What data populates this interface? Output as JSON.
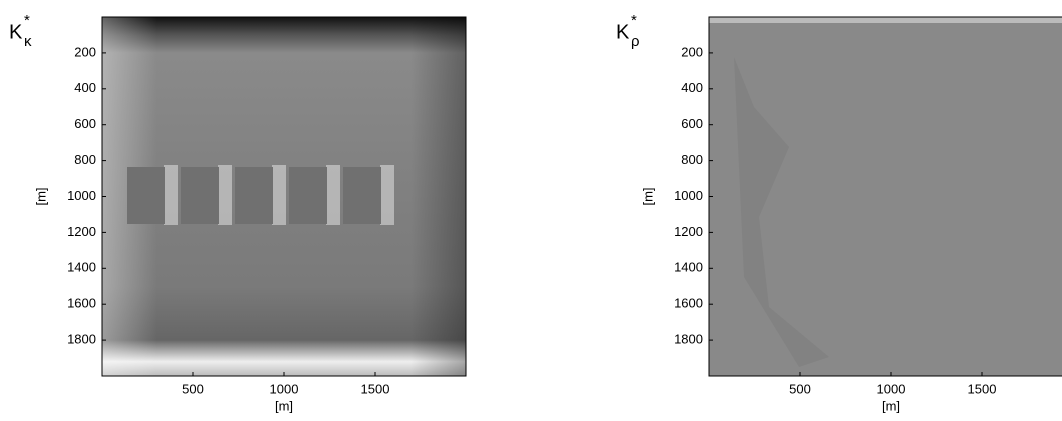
{
  "chart_data": [
    {
      "type": "image",
      "title": [
        "K",
        "*",
        "κ"
      ],
      "xlabel": "[m]",
      "ylabel": "[m]",
      "xlim": [
        0,
        2000
      ],
      "ylim": [
        0,
        2000
      ],
      "xticks": [
        500,
        1000,
        1500
      ],
      "yticks": [
        200,
        400,
        600,
        800,
        1000,
        1200,
        1400,
        1600,
        1800
      ],
      "y_reversed": true
    },
    {
      "type": "image",
      "title": [
        "K",
        "*",
        "ρ"
      ],
      "xlabel": "[m]",
      "ylabel": "[m]",
      "xlim": [
        0,
        2000
      ],
      "ylim": [
        0,
        2000
      ],
      "xticks": [
        500,
        1000,
        1500
      ],
      "yticks": [
        200,
        400,
        600,
        800,
        1000,
        1200,
        1400,
        1600,
        1800
      ],
      "y_reversed": true
    }
  ]
}
